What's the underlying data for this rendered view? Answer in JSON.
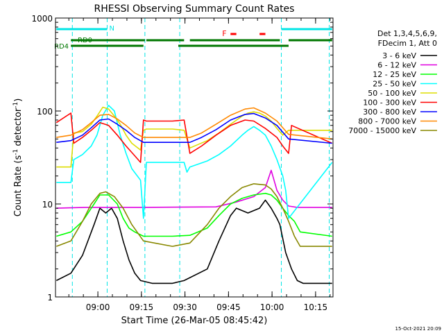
{
  "chart_data": {
    "type": "line",
    "title": "RHESSI Observing Summary Count Rates",
    "xlabel": "Start Time (26-Mar-05 08:45:42)",
    "ylabel": "Count Rate (s",
    "ylabel_sup": "-1",
    "ylabel_tail": " detector",
    "ylabel_end": ")",
    "y_scale": "log",
    "ylim": [
      1,
      1000
    ],
    "xlim_minutes": [
      -0.3,
      95.3
    ],
    "x_tick_labels": [
      "09:00",
      "09:15",
      "09:30",
      "09:45",
      "10:00",
      "10:15"
    ],
    "x_tick_minutes": [
      14.3,
      29.3,
      44.3,
      59.3,
      74.3,
      89.3
    ],
    "y_tick_labels": [
      "1",
      "10",
      "100",
      "1000"
    ],
    "y_tick_values": [
      1,
      10,
      100,
      1000
    ],
    "legend": {
      "position": "top-right",
      "header": [
        "Det 1,3,4,5,6,9,",
        "FDecim 1, Att 0"
      ]
    },
    "series": [
      {
        "name": "3 - 6 keV",
        "color": "#000000",
        "x": [
          0,
          5,
          9,
          13,
          15,
          17,
          19,
          21,
          23,
          25,
          27,
          29,
          33,
          40,
          44,
          52,
          56,
          60,
          62,
          66,
          70,
          72,
          74,
          76,
          77,
          79,
          81,
          83,
          85,
          95
        ],
        "y": [
          1.5,
          1.8,
          2.8,
          6.0,
          9.0,
          8.0,
          9.0,
          7.0,
          4.0,
          2.5,
          1.8,
          1.5,
          1.4,
          1.4,
          1.5,
          2.0,
          4.0,
          7.5,
          9.0,
          8.0,
          9.0,
          11.0,
          9.0,
          7.0,
          6.0,
          3.0,
          2.0,
          1.5,
          1.4,
          1.4
        ]
      },
      {
        "name": "6 - 12 keV",
        "color": "#e000e0",
        "x": [
          0,
          10,
          30,
          55,
          62,
          68,
          72,
          74,
          76,
          78,
          80,
          83,
          95
        ],
        "y": [
          9.0,
          9.2,
          9.2,
          9.3,
          10.5,
          12.0,
          15.0,
          23.0,
          14.0,
          11.0,
          9.5,
          9.2,
          9.2
        ]
      },
      {
        "name": "12 - 25 keV",
        "color": "#00ff00",
        "x": [
          0,
          5,
          9,
          13,
          15,
          18,
          21,
          23,
          25,
          27,
          30,
          40,
          46,
          52,
          56,
          60,
          64,
          68,
          72,
          74,
          76,
          78,
          80,
          82,
          84,
          95
        ],
        "y": [
          4.5,
          5.0,
          6.5,
          10.0,
          12.5,
          12.5,
          10.0,
          7.0,
          5.5,
          5.0,
          4.5,
          4.5,
          4.6,
          5.5,
          7.5,
          10.0,
          11.5,
          12.5,
          13.0,
          12.5,
          11.0,
          9.0,
          7.5,
          6.5,
          5.0,
          4.5
        ]
      },
      {
        "name": "25 - 50 keV",
        "color": "#00ffff",
        "x": [
          0,
          5,
          6,
          9,
          12,
          14,
          16,
          18,
          20,
          22,
          24,
          26,
          29,
          30,
          31,
          40,
          44,
          45,
          46,
          52,
          56,
          60,
          64,
          66,
          68,
          70,
          72,
          74,
          76,
          78,
          79,
          80,
          95
        ],
        "y": [
          17,
          17,
          30,
          34,
          42,
          55,
          90,
          115,
          100,
          55,
          35,
          24,
          18,
          7,
          28,
          28,
          28,
          22,
          25,
          29,
          34,
          42,
          55,
          62,
          68,
          62,
          55,
          42,
          30,
          20,
          14,
          7,
          28
        ]
      },
      {
        "name": "50 - 100 keV",
        "color": "#dddd00",
        "x": [
          0,
          5,
          6,
          9,
          12,
          14,
          16,
          18,
          20,
          22,
          24,
          26,
          29,
          30,
          31,
          40,
          44,
          46,
          52,
          56,
          60,
          64,
          66,
          68,
          70,
          72,
          74,
          76,
          78,
          80,
          95
        ],
        "y": [
          25,
          25,
          58,
          60,
          72,
          88,
          110,
          105,
          88,
          72,
          55,
          45,
          38,
          62,
          64,
          64,
          62,
          40,
          48,
          58,
          72,
          88,
          95,
          98,
          95,
          88,
          78,
          65,
          55,
          62,
          62
        ]
      },
      {
        "name": "100 - 300 keV",
        "color": "#ff0000",
        "x": [
          0,
          5,
          6,
          9,
          12,
          15,
          18,
          21,
          24,
          27,
          29,
          30,
          31,
          40,
          44,
          46,
          50,
          55,
          60,
          65,
          68,
          72,
          76,
          78,
          80,
          81,
          95
        ],
        "y": [
          75,
          95,
          45,
          52,
          62,
          75,
          70,
          55,
          42,
          33,
          28,
          80,
          78,
          78,
          80,
          35,
          42,
          55,
          70,
          80,
          78,
          65,
          52,
          42,
          35,
          70,
          45
        ]
      },
      {
        "name": "300 - 800 keV",
        "color": "#0000ff",
        "x": [
          0,
          5,
          9,
          12,
          15,
          18,
          21,
          24,
          27,
          30,
          40,
          46,
          50,
          55,
          60,
          65,
          68,
          72,
          76,
          80,
          95
        ],
        "y": [
          46,
          48,
          55,
          66,
          80,
          82,
          72,
          62,
          52,
          46,
          46,
          46,
          52,
          63,
          80,
          92,
          94,
          84,
          70,
          50,
          45
        ]
      },
      {
        "name": "800 - 7000 keV",
        "color": "#ff8800",
        "x": [
          0,
          5,
          9,
          12,
          15,
          18,
          21,
          24,
          27,
          30,
          40,
          46,
          50,
          55,
          60,
          65,
          68,
          72,
          76,
          80,
          95
        ],
        "y": [
          52,
          55,
          63,
          75,
          90,
          92,
          82,
          70,
          58,
          52,
          52,
          52,
          58,
          72,
          90,
          105,
          108,
          95,
          78,
          56,
          50
        ]
      },
      {
        "name": "7000 - 15000 keV",
        "color": "#888800",
        "x": [
          0,
          5,
          9,
          12,
          15,
          17,
          20,
          23,
          26,
          30,
          40,
          46,
          52,
          56,
          60,
          64,
          68,
          72,
          74,
          76,
          78,
          80,
          82,
          84,
          95
        ],
        "y": [
          3.5,
          4.0,
          6.5,
          10.0,
          13.0,
          13.5,
          12.0,
          9.0,
          6.0,
          4.0,
          3.5,
          3.8,
          6.0,
          9.0,
          12.0,
          15.0,
          16.5,
          16.0,
          14.5,
          12.0,
          9.0,
          6.5,
          4.5,
          3.5,
          3.5
        ]
      }
    ],
    "vertical_markers_minutes": [
      5.5,
      17.5,
      30.5,
      42.5,
      77.5,
      94.0
    ],
    "cyan_bar_segments_minutes": [
      [
        0,
        17.5
      ],
      [
        77.5,
        95
      ]
    ],
    "cyan_bar_label": "N",
    "green_bar_upper_segments_minutes": [
      [
        5,
        30.5
      ],
      [
        31,
        44
      ],
      [
        46,
        77
      ],
      [
        80,
        95
      ]
    ],
    "green_bar_lower_segments_minutes": [
      [
        5,
        30
      ],
      [
        42,
        80
      ]
    ],
    "green_bar_labels": [
      "RD0",
      "RD4"
    ],
    "flare_flag_label": "F",
    "flare_flag_segments_minutes": [
      [
        60,
        62
      ],
      [
        70,
        72
      ]
    ]
  },
  "timestamp": "15-Oct-2021 20:09"
}
